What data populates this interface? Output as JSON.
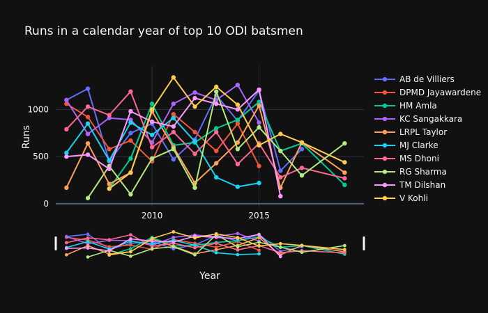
{
  "chart_data": {
    "type": "line",
    "title": "Runs in a calendar year of top 10 ODI batsmen",
    "xlabel": "Year",
    "ylabel": "Runs",
    "xlim": [
      2005.5,
      2019.9
    ],
    "ylim": [
      -30,
      1460
    ],
    "x_ticks": [
      2010,
      2015
    ],
    "y_ticks": [
      0,
      500,
      1000
    ],
    "grid": true,
    "legend_position": "right",
    "range_slider": true,
    "series": [
      {
        "name": "AB de Villiers",
        "color": "#636efa",
        "x": [
          2006,
          2007,
          2008,
          2009,
          2010,
          2011,
          2012,
          2013,
          2014,
          2015,
          2016,
          2017
        ],
        "y": [
          1100,
          1220,
          450,
          750,
          850,
          470,
          680,
          1150,
          880,
          1200,
          350,
          580
        ]
      },
      {
        "name": "DPMD Jayawardene",
        "color": "#EF553B",
        "x": [
          2006,
          2007,
          2008,
          2009,
          2010,
          2011,
          2012,
          2013,
          2014,
          2015
        ],
        "y": [
          1060,
          920,
          580,
          670,
          450,
          950,
          760,
          560,
          850,
          400
        ]
      },
      {
        "name": "HM Amla",
        "color": "#00cc96",
        "x": [
          2008,
          2009,
          2010,
          2011,
          2012,
          2013,
          2014,
          2015,
          2016,
          2017,
          2019
        ],
        "y": [
          160,
          480,
          1060,
          620,
          650,
          800,
          890,
          1080,
          560,
          640,
          200
        ]
      },
      {
        "name": "KC Sangakkara",
        "color": "#ab63fa",
        "x": [
          2006,
          2007,
          2008,
          2009,
          2010,
          2011,
          2012,
          2013,
          2014,
          2015
        ],
        "y": [
          1100,
          740,
          910,
          890,
          650,
          1060,
          1180,
          1100,
          1260,
          860
        ]
      },
      {
        "name": "LRPL Taylor",
        "color": "#FFA15A",
        "x": [
          2006,
          2007,
          2008,
          2009,
          2010,
          2011,
          2012,
          2013,
          2014,
          2015,
          2016,
          2017,
          2019
        ],
        "y": [
          170,
          640,
          210,
          330,
          980,
          600,
          220,
          430,
          650,
          1040,
          170,
          650,
          330
        ]
      },
      {
        "name": "MJ Clarke",
        "color": "#19d3f3",
        "x": [
          2006,
          2007,
          2008,
          2009,
          2010,
          2011,
          2012,
          2013,
          2014,
          2015
        ],
        "y": [
          540,
          850,
          460,
          860,
          730,
          910,
          660,
          280,
          180,
          220
        ]
      },
      {
        "name": "MS Dhoni",
        "color": "#FF6692",
        "x": [
          2006,
          2007,
          2008,
          2009,
          2010,
          2011,
          2012,
          2013,
          2014,
          2015,
          2016,
          2017,
          2019
        ],
        "y": [
          790,
          1030,
          940,
          1190,
          600,
          760,
          530,
          760,
          420,
          640,
          280,
          380,
          270
        ]
      },
      {
        "name": "RG Sharma",
        "color": "#B6E880",
        "x": [
          2007,
          2008,
          2009,
          2010,
          2011,
          2012,
          2013,
          2014,
          2015,
          2016,
          2017,
          2019
        ],
        "y": [
          60,
          400,
          100,
          480,
          580,
          170,
          1190,
          580,
          810,
          560,
          300,
          640
        ]
      },
      {
        "name": "TM Dilshan",
        "color": "#FF97FF",
        "x": [
          2006,
          2007,
          2008,
          2009,
          2010,
          2011,
          2012,
          2013,
          2014,
          2015,
          2016
        ],
        "y": [
          500,
          520,
          370,
          980,
          870,
          820,
          1120,
          1060,
          1000,
          1210,
          80
        ]
      },
      {
        "name": "V Kohli",
        "color": "#FECB52",
        "x": [
          2008,
          2009,
          2010,
          2011,
          2012,
          2013,
          2014,
          2015,
          2016,
          2017,
          2019
        ],
        "y": [
          160,
          330,
          1000,
          1340,
          1030,
          1240,
          1050,
          620,
          740,
          650,
          440
        ]
      }
    ]
  }
}
